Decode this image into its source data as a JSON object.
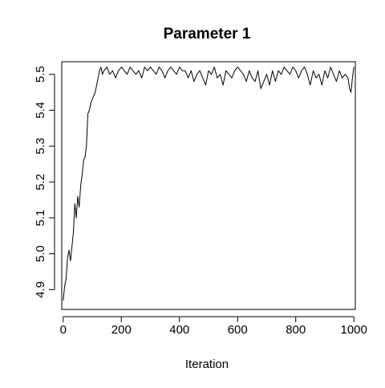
{
  "chart_data": {
    "type": "line",
    "title": "Parameter 1",
    "xlabel": "Iteration",
    "ylabel": "",
    "xlim": [
      -5,
      1005
    ],
    "ylim": [
      4.845,
      5.535
    ],
    "xticks": [
      0,
      200,
      400,
      600,
      800,
      1000
    ],
    "yticks": [
      4.9,
      5.0,
      5.1,
      5.2,
      5.3,
      5.4,
      5.5
    ],
    "ytick_labels": [
      "4.9",
      "5.0",
      "5.1",
      "5.2",
      "5.3",
      "5.4",
      "5.5"
    ],
    "grid": false,
    "legend": "none",
    "line_color": "#000000",
    "series": [
      {
        "x": [
          0,
          5,
          10,
          15,
          20,
          25,
          30,
          35,
          40,
          45,
          50,
          55,
          60,
          65,
          70,
          75,
          80,
          85,
          90,
          95,
          100,
          105,
          110,
          115,
          120,
          125,
          130,
          135,
          140,
          150,
          160,
          170,
          180,
          190,
          200,
          210,
          220,
          230,
          240,
          250,
          260,
          270,
          280,
          290,
          300,
          310,
          320,
          330,
          340,
          350,
          360,
          370,
          380,
          390,
          400,
          410,
          420,
          430,
          440,
          450,
          460,
          470,
          480,
          490,
          500,
          510,
          520,
          530,
          540,
          550,
          560,
          570,
          580,
          590,
          600,
          610,
          620,
          630,
          640,
          650,
          660,
          670,
          680,
          690,
          700,
          710,
          720,
          730,
          740,
          750,
          760,
          770,
          780,
          790,
          800,
          810,
          820,
          830,
          840,
          850,
          860,
          870,
          880,
          890,
          900,
          910,
          920,
          930,
          940,
          950,
          960,
          970,
          980,
          985,
          990,
          995,
          1000
        ],
        "y": [
          4.87,
          4.91,
          4.93,
          4.99,
          5.01,
          4.98,
          5.02,
          5.06,
          5.14,
          5.1,
          5.16,
          5.13,
          5.19,
          5.22,
          5.26,
          5.27,
          5.3,
          5.39,
          5.4,
          5.42,
          5.43,
          5.44,
          5.45,
          5.47,
          5.49,
          5.51,
          5.52,
          5.5,
          5.51,
          5.52,
          5.5,
          5.51,
          5.49,
          5.51,
          5.52,
          5.51,
          5.5,
          5.52,
          5.51,
          5.5,
          5.51,
          5.49,
          5.52,
          5.51,
          5.52,
          5.51,
          5.5,
          5.52,
          5.51,
          5.49,
          5.51,
          5.52,
          5.51,
          5.5,
          5.52,
          5.51,
          5.51,
          5.49,
          5.51,
          5.48,
          5.5,
          5.51,
          5.49,
          5.47,
          5.51,
          5.5,
          5.52,
          5.49,
          5.5,
          5.47,
          5.51,
          5.5,
          5.49,
          5.51,
          5.52,
          5.51,
          5.5,
          5.48,
          5.51,
          5.49,
          5.48,
          5.51,
          5.46,
          5.48,
          5.5,
          5.47,
          5.51,
          5.48,
          5.51,
          5.5,
          5.52,
          5.51,
          5.5,
          5.52,
          5.51,
          5.49,
          5.51,
          5.52,
          5.5,
          5.47,
          5.51,
          5.49,
          5.5,
          5.47,
          5.51,
          5.49,
          5.52,
          5.5,
          5.48,
          5.51,
          5.49,
          5.5,
          5.49,
          5.46,
          5.45,
          5.49,
          5.52
        ]
      }
    ]
  }
}
